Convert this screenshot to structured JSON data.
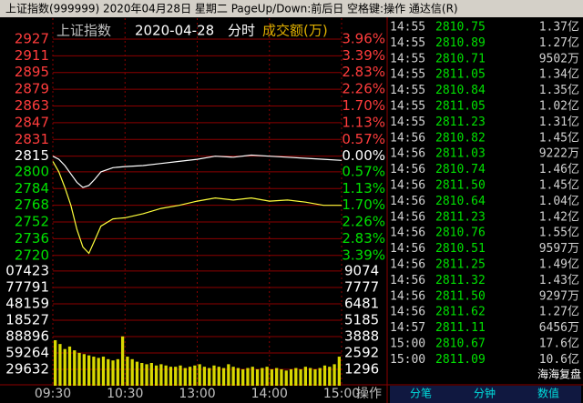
{
  "title_bar": "上证指数(999999)  2020年04月28日 星期二  PageUp/Down:前后日 空格键:操作  通达信(R)",
  "chart_data": {
    "type": "line",
    "title": "上证指数",
    "date": "2020-04-28",
    "mode": "分时",
    "volume_label": "成交额(万)",
    "x": [
      0,
      5,
      10,
      15,
      20,
      25,
      30,
      35,
      40,
      50,
      60,
      75,
      90,
      105,
      120,
      135,
      150,
      165,
      180,
      195,
      210,
      225,
      240
    ],
    "series": [
      {
        "color": "#ffffff",
        "values": [
          2815,
          2812,
          2806,
          2798,
          2790,
          2785,
          2787,
          2793,
          2800,
          2804,
          2805,
          2806,
          2808,
          2810,
          2812,
          2815,
          2814,
          2816,
          2815,
          2814,
          2813,
          2812,
          2811
        ]
      },
      {
        "color": "#ffff3c",
        "values": [
          2810,
          2800,
          2785,
          2768,
          2745,
          2728,
          2722,
          2735,
          2748,
          2755,
          2756,
          2760,
          2765,
          2768,
          2772,
          2775,
          2773,
          2775,
          2772,
          2773,
          2771,
          2768,
          2768
        ]
      }
    ],
    "xlim": [
      0,
      240
    ],
    "xticks": [
      {
        "value": 0,
        "label": "09:30"
      },
      {
        "value": 60,
        "label": "10:30"
      },
      {
        "value": 120,
        "label": "13:00"
      },
      {
        "value": 180,
        "label": "14:00"
      },
      {
        "value": 240,
        "label": "15:00"
      }
    ],
    "ylim": [
      2712,
      2947
    ],
    "yticks": [
      2927,
      2911,
      2895,
      2879,
      2863,
      2847,
      2831,
      2815,
      2800,
      2784,
      2768,
      2752,
      2736,
      2720
    ],
    "pct_labels": [
      "3.96%",
      "3.39%",
      "2.83%",
      "2.26%",
      "1.70%",
      "1.13%",
      "0.57%",
      "0.00%",
      "0.57%",
      "1.13%",
      "1.70%",
      "2.26%",
      "2.83%",
      "3.39%"
    ],
    "colors": {
      "up": "#ff3c3c",
      "down": "#00e000",
      "flat": "#ffffff",
      "grid": "#8b0000"
    },
    "volume": {
      "color": "#d8d800",
      "values": [
        3600,
        3300,
        2900,
        3100,
        2800,
        2600,
        2500,
        2400,
        2300,
        2200,
        2300,
        2100,
        2000,
        2100,
        3900,
        2300,
        2100,
        1900,
        1800,
        1700,
        1800,
        1600,
        1700,
        1600,
        1500,
        1500,
        1600,
        1400,
        1500,
        1600,
        1700,
        1500,
        1400,
        1600,
        1500,
        1400,
        1700,
        1500,
        1400,
        1300,
        1400,
        1500,
        1300,
        1400,
        1500,
        1300,
        1400,
        1300,
        1200,
        1300,
        1400,
        1300,
        1500,
        1400,
        1300,
        1400,
        1600,
        1500,
        1700,
        2300
      ],
      "ylim": [
        0,
        9500
      ],
      "yticks": [
        9074,
        7777,
        6481,
        5185,
        3888,
        2592,
        1296
      ],
      "left_labels": [
        "07423",
        "77791",
        "48159",
        "18527",
        "88896",
        "59264",
        "29632"
      ]
    }
  },
  "trades": {
    "rows": [
      [
        "14:55",
        "2810.75",
        "1.37亿"
      ],
      [
        "14:55",
        "2810.89",
        "1.27亿"
      ],
      [
        "14:55",
        "2810.71",
        "9502万"
      ],
      [
        "14:55",
        "2811.05",
        "1.34亿"
      ],
      [
        "14:55",
        "2810.84",
        "1.35亿"
      ],
      [
        "14:55",
        "2811.05",
        "1.02亿"
      ],
      [
        "14:55",
        "2811.23",
        "1.31亿"
      ],
      [
        "14:56",
        "2810.82",
        "1.45亿"
      ],
      [
        "14:56",
        "2811.03",
        "9222万"
      ],
      [
        "14:56",
        "2810.74",
        "1.46亿"
      ],
      [
        "14:56",
        "2811.50",
        "1.45亿"
      ],
      [
        "14:56",
        "2810.64",
        "1.04亿"
      ],
      [
        "14:56",
        "2811.23",
        "1.42亿"
      ],
      [
        "14:56",
        "2810.76",
        "1.55亿"
      ],
      [
        "14:56",
        "2810.51",
        "9597万"
      ],
      [
        "14:56",
        "2811.25",
        "1.49亿"
      ],
      [
        "14:56",
        "2811.32",
        "1.43亿"
      ],
      [
        "14:56",
        "2811.50",
        "9297万"
      ],
      [
        "14:56",
        "2811.62",
        "1.27亿"
      ],
      [
        "14:57",
        "2811.11",
        "6456万"
      ],
      [
        "15:00",
        "2810.67",
        "17.6亿"
      ],
      [
        "15:00",
        "2811.09",
        "10.6亿"
      ]
    ]
  },
  "operate": "操作",
  "tabs": [
    "分笔",
    "分钟",
    "数值"
  ],
  "watermark": "海海复盘"
}
